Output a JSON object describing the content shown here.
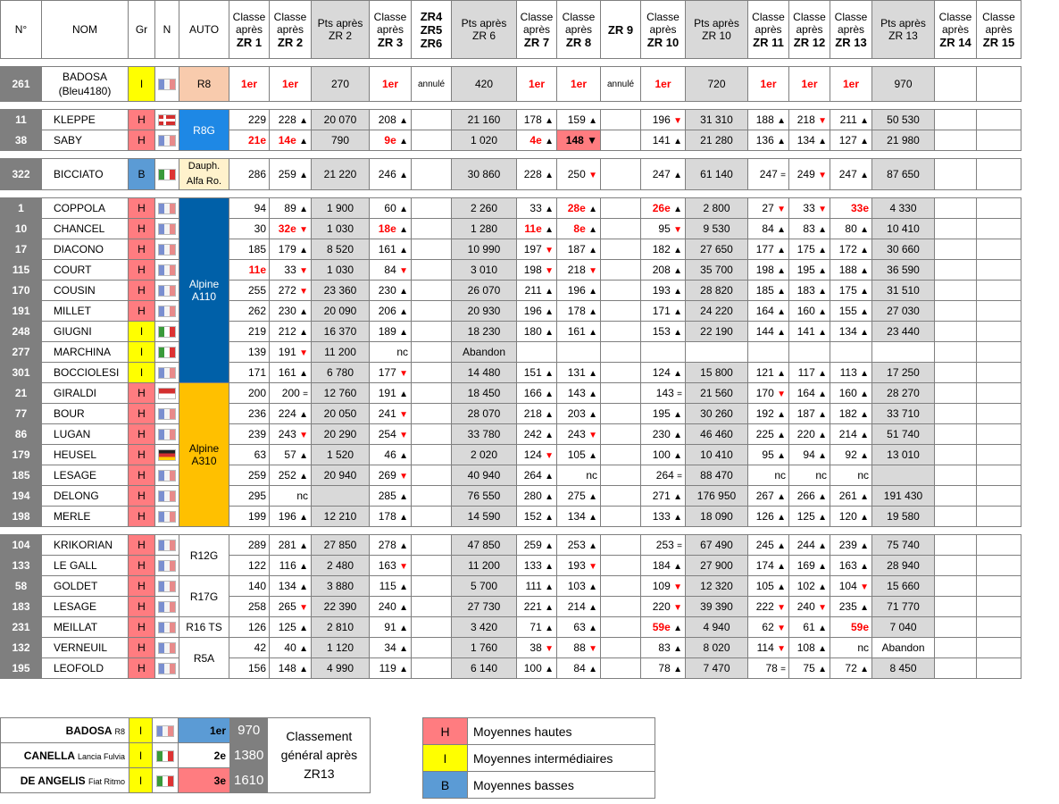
{
  "headers": {
    "num": "N°",
    "nom": "NOM",
    "gr": "Gr",
    "n": "N",
    "auto": "AUTO",
    "zr1": [
      "Classe",
      "après",
      "ZR 1"
    ],
    "zr2": [
      "Classe",
      "après",
      "ZR 2"
    ],
    "pts2": [
      "Pts après",
      "ZR 2"
    ],
    "zr3": [
      "Classe",
      "après",
      "ZR 3"
    ],
    "zr456": [
      "ZR4",
      "ZR5",
      "ZR6"
    ],
    "pts6": [
      "Pts après",
      "ZR 6"
    ],
    "zr7": [
      "Classe",
      "après",
      "ZR 7"
    ],
    "zr8": [
      "Classe",
      "après",
      "ZR 8"
    ],
    "zr9": "ZR 9",
    "zr10": [
      "Classe",
      "après",
      "ZR 10"
    ],
    "pts10": [
      "Pts après",
      "ZR 10"
    ],
    "zr11": [
      "Classe",
      "après",
      "ZR 11"
    ],
    "zr12": [
      "Classe",
      "après",
      "ZR 12"
    ],
    "zr13": [
      "Classe",
      "après",
      "ZR 13"
    ],
    "pts13": [
      "Pts après",
      "ZR 13"
    ],
    "zr14": [
      "Classe",
      "après",
      "ZR 14"
    ],
    "zr15": [
      "Classe",
      "après",
      "ZR 15"
    ]
  },
  "badosa": {
    "num": "261",
    "nom": "BADOSA",
    "nom2": "(Bleu4180)",
    "gr": "I",
    "auto": "R8",
    "zr1": "1er",
    "zr2": "1er",
    "pts2": "270",
    "zr3": "1er",
    "zr456": "annulé",
    "pts6": "420",
    "zr7": "1er",
    "zr8": "1er",
    "zr9": "annulé",
    "zr10": "1er",
    "pts10": "720",
    "zr11": "1er",
    "zr12": "1er",
    "zr13": "1er",
    "pts13": "970"
  },
  "rows": [
    {
      "num": "11",
      "nom": "KLEPPE",
      "gr": "H",
      "flag": "no",
      "zr1": "229",
      "zr2": "228 ▲",
      "pts2": "20 070",
      "zr3": "208 ▲",
      "pts6": "21 160",
      "zr7": "178 ▲",
      "zr8": "159 ▲",
      "zr10": "196 ▼",
      "pts10": "31 310",
      "zr11": "188 ▲",
      "zr12": "218 ▼",
      "zr13": "211 ▲",
      "pts13": "50 530"
    },
    {
      "num": "38",
      "nom": "SABY",
      "gr": "H",
      "flag": "fr",
      "zr1": "21e",
      "zr2": "14e ▲",
      "pts2": "790",
      "zr3": "9e ▲",
      "pts6": "1 020",
      "zr7": "4e ▲",
      "zr8": "148 ▼",
      "zr10": "141 ▲",
      "pts10": "21 280",
      "zr11": "136 ▲",
      "zr12": "134 ▲",
      "zr13": "127 ▲",
      "pts13": "21 980"
    },
    {
      "num": "322",
      "nom": "BICCIATO",
      "gr": "B",
      "flag": "it",
      "zr1": "286",
      "zr2": "259 ▲",
      "pts2": "21 220",
      "zr3": "246 ▲",
      "pts6": "30 860",
      "zr7": "228 ▲",
      "zr8": "250 ▼",
      "zr10": "247 ▲",
      "pts10": "61 140",
      "zr11": "247 =",
      "zr12": "249 ▼",
      "zr13": "247 ▲",
      "pts13": "87 650"
    },
    {
      "num": "1",
      "nom": "COPPOLA",
      "gr": "H",
      "flag": "fr",
      "zr1": "94",
      "zr2": "89 ▲",
      "pts2": "1 900",
      "zr3": "60 ▲",
      "pts6": "2 260",
      "zr7": "33 ▲",
      "zr8": "28e ▲",
      "zr10": "26e ▲",
      "pts10": "2 800",
      "zr11": "27 ▼",
      "zr12": "33 ▼",
      "zr13": "33e",
      "pts13": "4 330"
    },
    {
      "num": "10",
      "nom": "CHANCEL",
      "gr": "H",
      "flag": "fr",
      "zr1": "30",
      "zr2": "32e ▼",
      "pts2": "1 030",
      "zr3": "18e ▲",
      "pts6": "1 280",
      "zr7": "11e ▲",
      "zr8": "8e ▲",
      "zr10": "95 ▼",
      "pts10": "9 530",
      "zr11": "84 ▲",
      "zr12": "83 ▲",
      "zr13": "80 ▲",
      "pts13": "10 410"
    },
    {
      "num": "17",
      "nom": "DIACONO",
      "gr": "H",
      "flag": "fr",
      "zr1": "185",
      "zr2": "179 ▲",
      "pts2": "8 520",
      "zr3": "161 ▲",
      "pts6": "10 990",
      "zr7": "197 ▼",
      "zr8": "187 ▲",
      "zr10": "182 ▲",
      "pts10": "27 650",
      "zr11": "177 ▲",
      "zr12": "175 ▲",
      "zr13": "172 ▲",
      "pts13": "30 660"
    },
    {
      "num": "115",
      "nom": "COURT",
      "gr": "H",
      "flag": "fr",
      "zr1": "11e",
      "zr2": "33 ▼",
      "pts2": "1 030",
      "zr3": "84 ▼",
      "pts6": "3 010",
      "zr7": "198 ▼",
      "zr8": "218 ▼",
      "zr10": "208 ▲",
      "pts10": "35 700",
      "zr11": "198 ▲",
      "zr12": "195 ▲",
      "zr13": "188 ▲",
      "pts13": "36 590"
    },
    {
      "num": "170",
      "nom": "COUSIN",
      "gr": "H",
      "flag": "fr",
      "zr1": "255",
      "zr2": "272 ▼",
      "pts2": "23 360",
      "zr3": "230 ▲",
      "pts6": "26 070",
      "zr7": "211 ▲",
      "zr8": "196 ▲",
      "zr10": "193 ▲",
      "pts10": "28 820",
      "zr11": "185 ▲",
      "zr12": "183 ▲",
      "zr13": "175 ▲",
      "pts13": "31 510"
    },
    {
      "num": "191",
      "nom": "MILLET",
      "gr": "H",
      "flag": "fr",
      "zr1": "262",
      "zr2": "230 ▲",
      "pts2": "20 090",
      "zr3": "206 ▲",
      "pts6": "20 930",
      "zr7": "196 ▲",
      "zr8": "178 ▲",
      "zr10": "171 ▲",
      "pts10": "24 220",
      "zr11": "164 ▲",
      "zr12": "160 ▲",
      "zr13": "155 ▲",
      "pts13": "27 030"
    },
    {
      "num": "248",
      "nom": "GIUGNI",
      "gr": "I",
      "flag": "it",
      "zr1": "219",
      "zr2": "212 ▲",
      "pts2": "16 370",
      "zr3": "189 ▲",
      "pts6": "18 230",
      "zr7": "180 ▲",
      "zr8": "161 ▲",
      "zr10": "153 ▲",
      "pts10": "22 190",
      "zr11": "144 ▲",
      "zr12": "141 ▲",
      "zr13": "134 ▲",
      "pts13": "23 440"
    },
    {
      "num": "277",
      "nom": "MARCHINA",
      "gr": "I",
      "flag": "it",
      "zr1": "139",
      "zr2": "191 ▼",
      "pts2": "11 200",
      "zr3": "nc",
      "pts6": "Abandon"
    },
    {
      "num": "301",
      "nom": "BOCCIOLESI",
      "gr": "I",
      "flag": "fr",
      "zr1": "171",
      "zr2": "161 ▲",
      "pts2": "6 780",
      "zr3": "177 ▼",
      "pts6": "14 480",
      "zr7": "151 ▲",
      "zr8": "131 ▲",
      "zr10": "124 ▲",
      "pts10": "15 800",
      "zr11": "121 ▲",
      "zr12": "117 ▲",
      "zr13": "113 ▲",
      "pts13": "17 250"
    },
    {
      "num": "21",
      "nom": "GIRALDI",
      "gr": "H",
      "flag": "mc",
      "zr1": "200",
      "zr2": "200 =",
      "pts2": "12 760",
      "zr3": "191 ▲",
      "pts6": "18 450",
      "zr7": "166 ▲",
      "zr8": "143 ▲",
      "zr10": "143 =",
      "pts10": "21 560",
      "zr11": "170 ▼",
      "zr12": "164 ▲",
      "zr13": "160 ▲",
      "pts13": "28 270"
    },
    {
      "num": "77",
      "nom": "BOUR",
      "gr": "H",
      "flag": "fr",
      "zr1": "236",
      "zr2": "224 ▲",
      "pts2": "20 050",
      "zr3": "241 ▼",
      "pts6": "28 070",
      "zr7": "218 ▲",
      "zr8": "203 ▲",
      "zr10": "195 ▲",
      "pts10": "30 260",
      "zr11": "192 ▲",
      "zr12": "187 ▲",
      "zr13": "182 ▲",
      "pts13": "33 710"
    },
    {
      "num": "86",
      "nom": "LUGAN",
      "gr": "H",
      "flag": "fr",
      "zr1": "239",
      "zr2": "243 ▼",
      "pts2": "20 290",
      "zr3": "254 ▼",
      "pts6": "33 780",
      "zr7": "242 ▲",
      "zr8": "243 ▼",
      "zr10": "230 ▲",
      "pts10": "46 460",
      "zr11": "225 ▲",
      "zr12": "220 ▲",
      "zr13": "214 ▲",
      "pts13": "51 740"
    },
    {
      "num": "179",
      "nom": "HEUSEL",
      "gr": "H",
      "flag": "de",
      "zr1": "63",
      "zr2": "57 ▲",
      "pts2": "1 520",
      "zr3": "46 ▲",
      "pts6": "2 020",
      "zr7": "124 ▼",
      "zr8": "105 ▲",
      "zr10": "100 ▲",
      "pts10": "10 410",
      "zr11": "95 ▲",
      "zr12": "94 ▲",
      "zr13": "92 ▲",
      "pts13": "13 010"
    },
    {
      "num": "185",
      "nom": "LESAGE",
      "gr": "H",
      "flag": "fr",
      "zr1": "259",
      "zr2": "252 ▲",
      "pts2": "20 940",
      "zr3": "269 ▼",
      "pts6": "40 940",
      "zr7": "264 ▲",
      "zr8": "nc",
      "zr10": "264 =",
      "pts10": "88 470",
      "zr11": "nc",
      "zr12": "nc",
      "zr13": "nc",
      "pts13": ""
    },
    {
      "num": "194",
      "nom": "DELONG",
      "gr": "H",
      "flag": "fr",
      "zr1": "295",
      "zr2": "nc",
      "pts2": "",
      "zr3": "285 ▲",
      "pts6": "76 550",
      "zr7": "280 ▲",
      "zr8": "275 ▲",
      "zr10": "271 ▲",
      "pts10": "176 950",
      "zr11": "267 ▲",
      "zr12": "266 ▲",
      "zr13": "261 ▲",
      "pts13": "191 430"
    },
    {
      "num": "198",
      "nom": "MERLE",
      "gr": "H",
      "flag": "fr",
      "zr1": "199",
      "zr2": "196 ▲",
      "pts2": "12 210",
      "zr3": "178 ▲",
      "pts6": "14 590",
      "zr7": "152 ▲",
      "zr8": "134 ▲",
      "zr10": "133 ▲",
      "pts10": "18 090",
      "zr11": "126 ▲",
      "zr12": "125 ▲",
      "zr13": "120 ▲",
      "pts13": "19 580"
    },
    {
      "num": "104",
      "nom": "KRIKORIAN",
      "gr": "H",
      "flag": "fr",
      "zr1": "289",
      "zr2": "281 ▲",
      "pts2": "27 850",
      "zr3": "278 ▲",
      "pts6": "47 850",
      "zr7": "259 ▲",
      "zr8": "253 ▲",
      "zr10": "253 =",
      "pts10": "67 490",
      "zr11": "245 ▲",
      "zr12": "244 ▲",
      "zr13": "239 ▲",
      "pts13": "75 740"
    },
    {
      "num": "133",
      "nom": "LE GALL",
      "gr": "H",
      "flag": "fr",
      "zr1": "122",
      "zr2": "116 ▲",
      "pts2": "2 480",
      "zr3": "163 ▼",
      "pts6": "11 200",
      "zr7": "133 ▲",
      "zr8": "193 ▼",
      "zr10": "184 ▲",
      "pts10": "27 900",
      "zr11": "174 ▲",
      "zr12": "169 ▲",
      "zr13": "163 ▲",
      "pts13": "28 940"
    },
    {
      "num": "58",
      "nom": "GOLDET",
      "gr": "H",
      "flag": "fr",
      "zr1": "140",
      "zr2": "134 ▲",
      "pts2": "3 880",
      "zr3": "115 ▲",
      "pts6": "5 700",
      "zr7": "111 ▲",
      "zr8": "103 ▲",
      "zr10": "109 ▼",
      "pts10": "12 320",
      "zr11": "105 ▲",
      "zr12": "102 ▲",
      "zr13": "104 ▼",
      "pts13": "15 660"
    },
    {
      "num": "183",
      "nom": "LESAGE",
      "gr": "H",
      "flag": "fr",
      "zr1": "258",
      "zr2": "265 ▼",
      "pts2": "22 390",
      "zr3": "240 ▲",
      "pts6": "27 730",
      "zr7": "221 ▲",
      "zr8": "214 ▲",
      "zr10": "220 ▼",
      "pts10": "39 390",
      "zr11": "222 ▼",
      "zr12": "240 ▼",
      "zr13": "235 ▲",
      "pts13": "71 770"
    },
    {
      "num": "231",
      "nom": "MEILLAT",
      "gr": "H",
      "flag": "fr",
      "zr1": "126",
      "zr2": "125 ▲",
      "pts2": "2 810",
      "zr3": "91 ▲",
      "pts6": "3 420",
      "zr7": "71 ▲",
      "zr8": "63 ▲",
      "zr10": "59e ▲",
      "pts10": "4 940",
      "zr11": "62 ▼",
      "zr12": "61 ▲",
      "zr13": "59e",
      "pts13": "7 040"
    },
    {
      "num": "132",
      "nom": "VERNEUIL",
      "gr": "H",
      "flag": "fr",
      "zr1": "42",
      "zr2": "40 ▲",
      "pts2": "1 120",
      "zr3": "34 ▲",
      "pts6": "1 760",
      "zr7": "38 ▼",
      "zr8": "88 ▼",
      "zr10": "83 ▲",
      "pts10": "8 020",
      "zr11": "114 ▼",
      "zr12": "108 ▲",
      "zr13": "nc",
      "pts13": "Abandon"
    },
    {
      "num": "195",
      "nom": "LEOFOLD",
      "gr": "H",
      "flag": "fr",
      "zr1": "156",
      "zr2": "148 ▲",
      "pts2": "4 990",
      "zr3": "119 ▲",
      "pts6": "6 140",
      "zr7": "100 ▲",
      "zr8": "84 ▲",
      "zr10": "78 ▲",
      "pts10": "7 470",
      "zr11": "78 =",
      "zr12": "75 ▲",
      "zr13": "72 ▲",
      "pts13": "8 450"
    }
  ],
  "autos": {
    "r8g": "R8G",
    "dauph": [
      "Dauph.",
      "Alfa Ro."
    ],
    "a110": [
      "Alpine",
      "A110"
    ],
    "a310": [
      "Alpine",
      "A310"
    ],
    "r12g": "R12G",
    "r17g": "R17G",
    "r16ts": "R16 TS",
    "r5a": "R5A"
  },
  "legend": {
    "entries": [
      {
        "name": "BADOSA",
        "car": "R8",
        "gr": "I",
        "flag": "fr",
        "rank": "1er",
        "pts": "970"
      },
      {
        "name": "CANELLA",
        "car": "Lancia Fulvia",
        "gr": "I",
        "flag": "it",
        "rank": "2e",
        "pts": "1380"
      },
      {
        "name": "DE ANGELIS",
        "car": "Fiat Ritmo",
        "gr": "I",
        "flag": "it",
        "rank": "3e",
        "pts": "1610"
      }
    ],
    "title": [
      "Classement",
      "général après",
      "ZR13"
    ],
    "groups": [
      {
        "code": "H",
        "label": "Moyennes hautes",
        "color": "#ff7c80"
      },
      {
        "code": "I",
        "label": "Moyennes intermédiaires",
        "color": "#ffff00"
      },
      {
        "code": "B",
        "label": "Moyennes basses",
        "color": "#5b9bd5"
      }
    ]
  },
  "colors": {
    "group_H": "#ff7c80",
    "group_I": "#ffff00",
    "group_B": "#5b9bd5",
    "alpine_a110": "#0060a8",
    "alpine_a310": "#ffc000",
    "num_bg": "#7f7f7f",
    "pts_bg": "#d9d9d9",
    "leader_red": "#ff0000"
  }
}
